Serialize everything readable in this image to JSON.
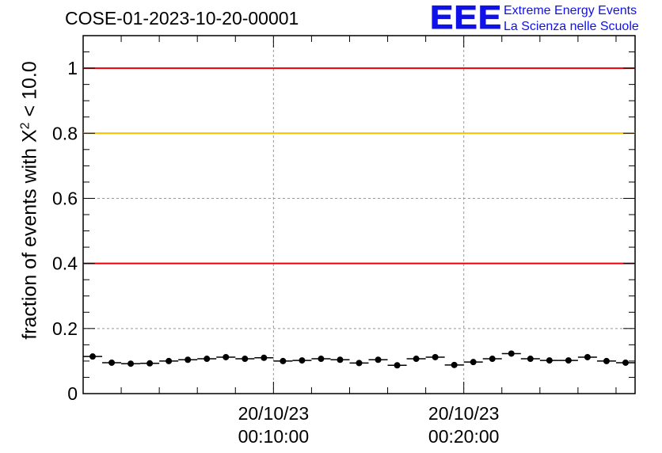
{
  "title": "COSE-01-2023-10-20-00001",
  "logo": {
    "mark": "EEE",
    "line1": "Extreme Energy Events",
    "line2": "La Scienza nelle Scuole"
  },
  "chart_data": {
    "type": "scatter",
    "ylabel_prefix": "fraction of events with ",
    "ylabel_symbol": "X",
    "ylabel_sup": "2",
    "ylabel_suffix": " < 10.0",
    "xlabel": "",
    "ylim": [
      0,
      1.1
    ],
    "xlim_minutes": [
      0,
      29
    ],
    "yticks": [
      {
        "value": 0,
        "label": "0"
      },
      {
        "value": 0.2,
        "label": "0.2"
      },
      {
        "value": 0.4,
        "label": "0.4"
      },
      {
        "value": 0.6,
        "label": "0.6"
      },
      {
        "value": 0.8,
        "label": "0.8"
      },
      {
        "value": 1,
        "label": "1"
      }
    ],
    "xticks": [
      {
        "minutes": 10,
        "line1": "20/10/23",
        "line2": "00:10:00"
      },
      {
        "minutes": 20,
        "line1": "20/10/23",
        "line2": "00:20:00"
      }
    ],
    "reference_lines": [
      {
        "value": 1.0,
        "color": "#e8000b"
      },
      {
        "value": 0.8,
        "color": "#f8c000"
      },
      {
        "value": 0.4,
        "color": "#e8000b"
      }
    ],
    "grid": true,
    "series": [
      {
        "x_minutes": [
          0.5,
          1.5,
          2.5,
          3.5,
          4.5,
          5.5,
          6.5,
          7.5,
          8.5,
          9.5,
          10.5,
          11.5,
          12.5,
          13.5,
          14.5,
          15.5,
          16.5,
          17.5,
          18.5,
          19.5,
          20.5,
          21.5,
          22.5,
          23.5,
          24.5,
          25.5,
          26.5,
          27.5,
          28.5
        ],
        "values": [
          0.114,
          0.095,
          0.092,
          0.093,
          0.1,
          0.104,
          0.107,
          0.112,
          0.107,
          0.11,
          0.1,
          0.102,
          0.107,
          0.104,
          0.094,
          0.104,
          0.087,
          0.107,
          0.112,
          0.088,
          0.097,
          0.107,
          0.123,
          0.107,
          0.102,
          0.102,
          0.112,
          0.1,
          0.095
        ]
      }
    ]
  }
}
